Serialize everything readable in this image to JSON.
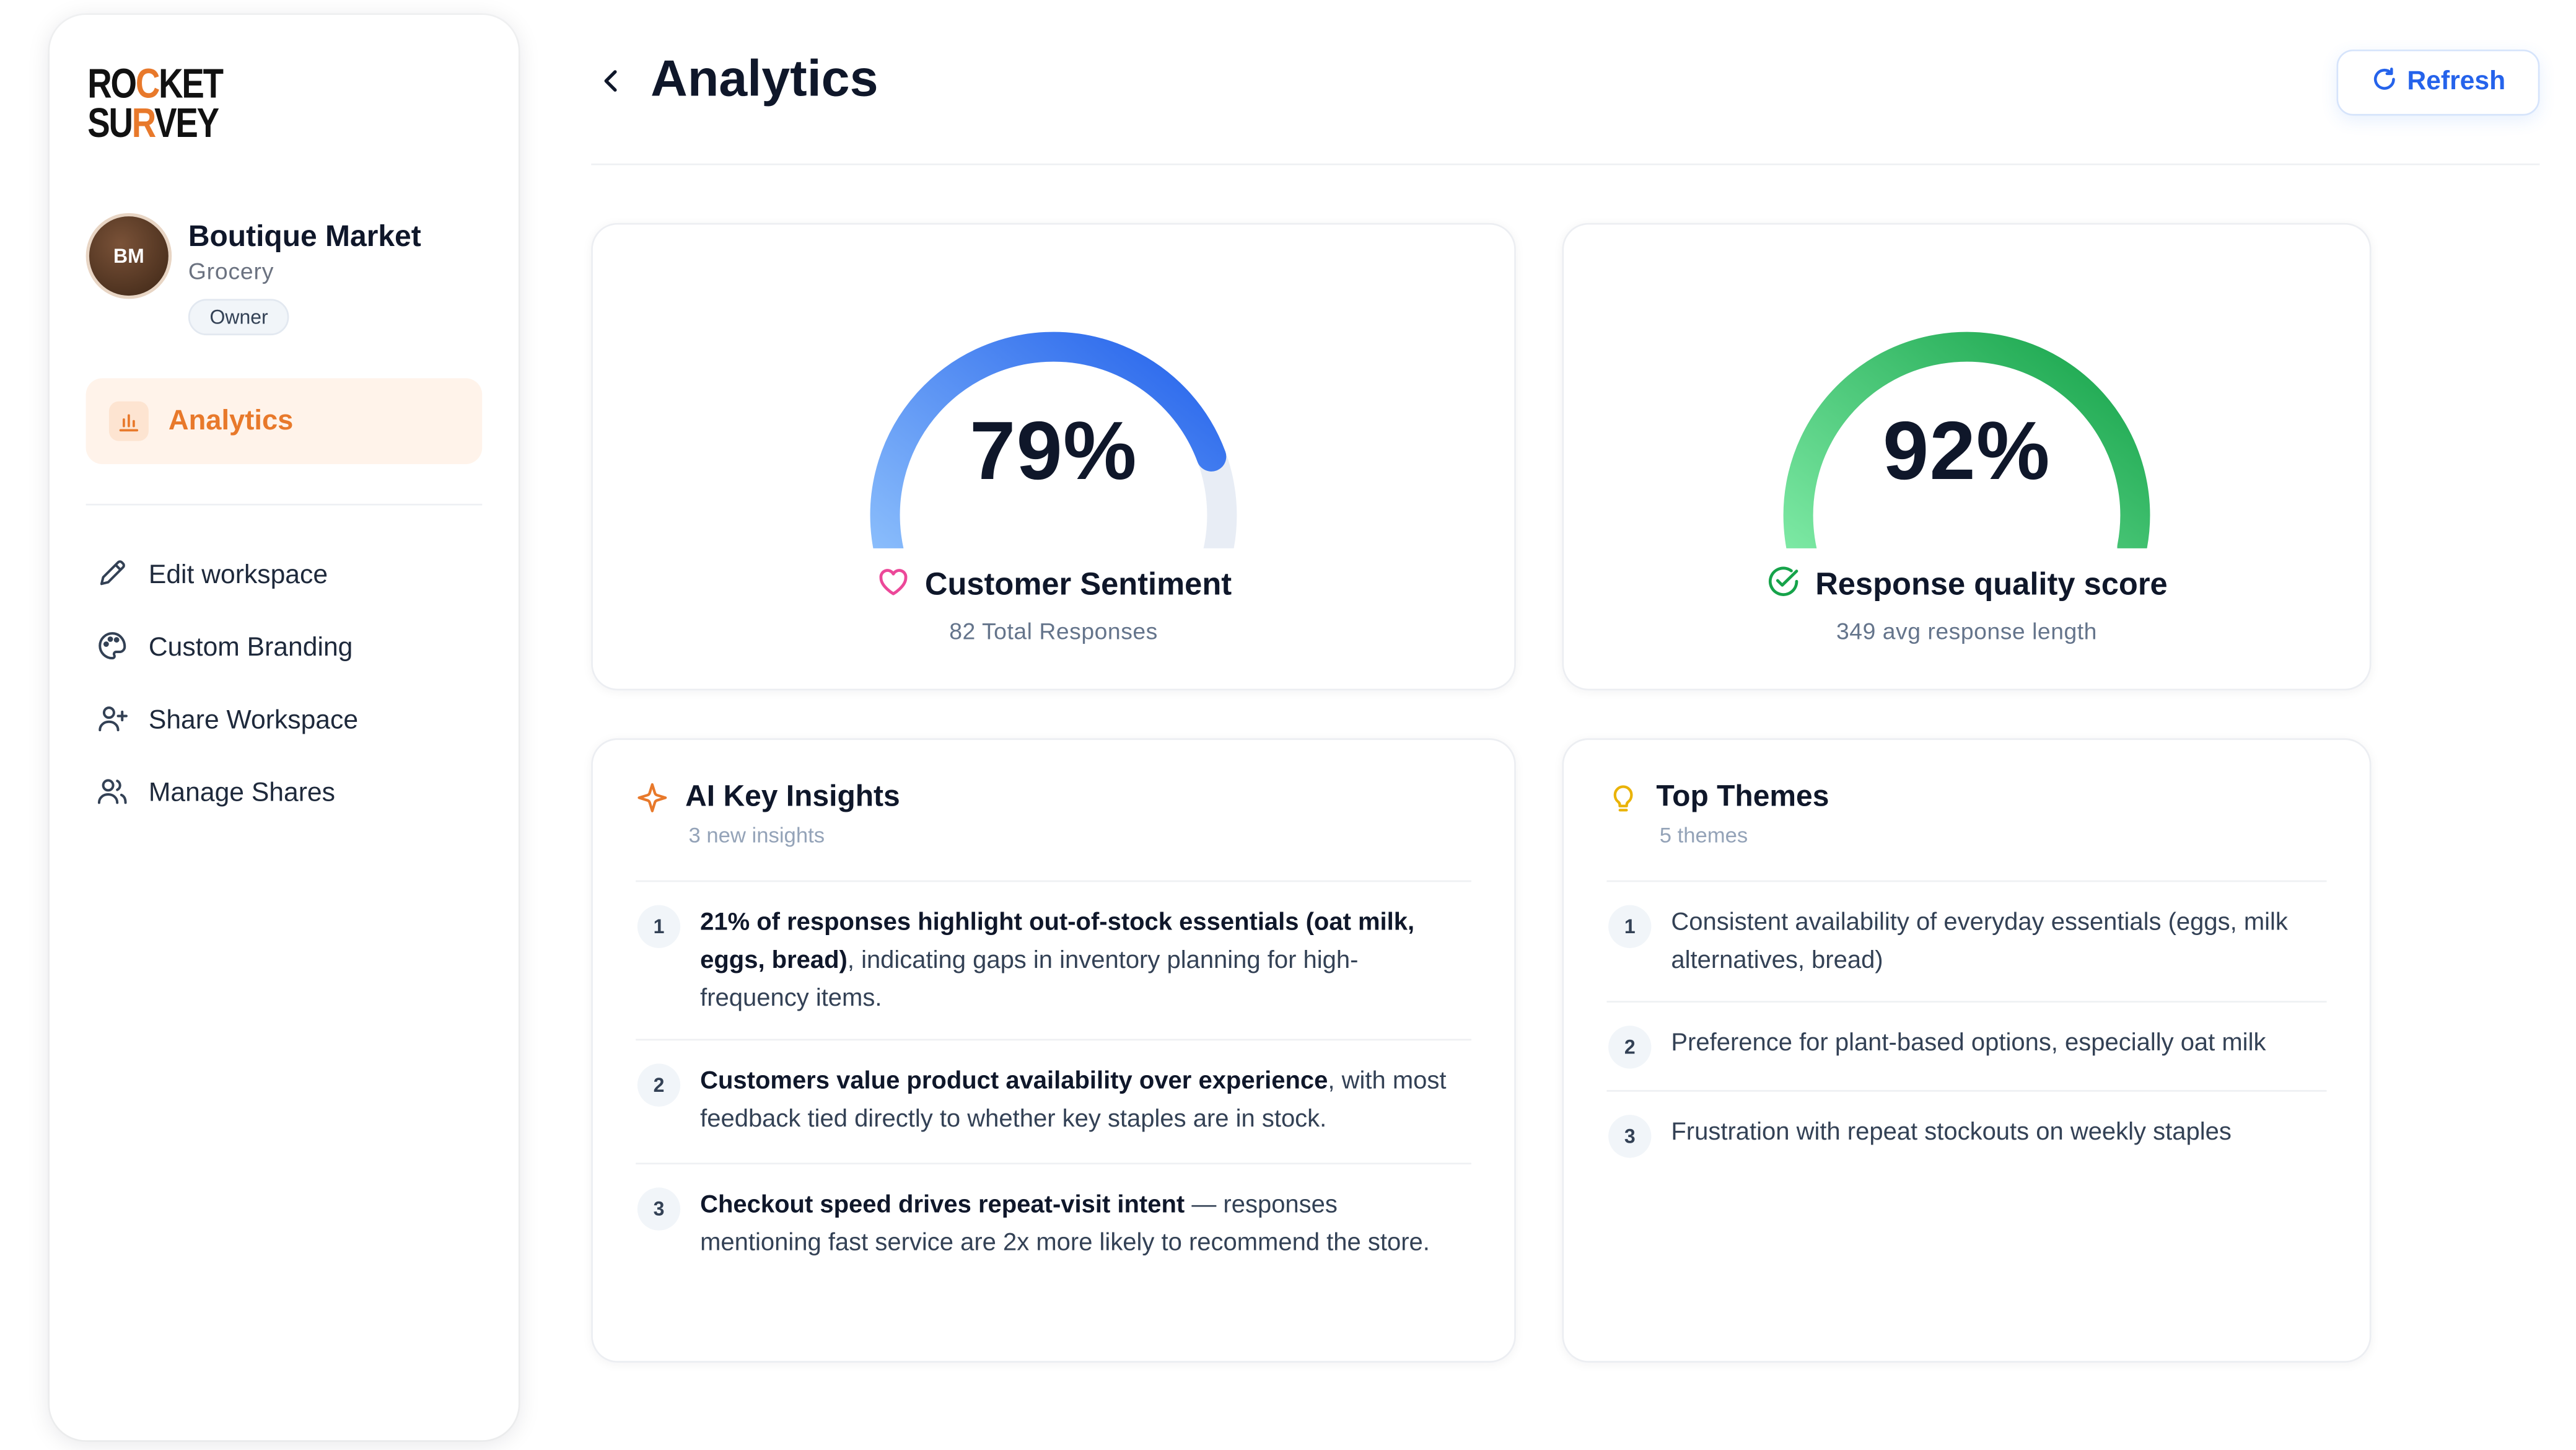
{
  "brand": {
    "line1_a": "RO",
    "line1_o": "C",
    "line1_b": "KET",
    "line2_a": "SU",
    "line2_o": "R",
    "line2_b": "VEY",
    "accent": "#e8792b"
  },
  "workspace": {
    "initials": "BM",
    "name": "Boutique Market",
    "type": "Grocery",
    "role": "Owner"
  },
  "nav": {
    "active": {
      "label": "Analytics",
      "icon": "bar-chart-icon"
    },
    "items": [
      {
        "label": "Edit workspace",
        "icon": "pencil-icon"
      },
      {
        "label": "Custom Branding",
        "icon": "palette-icon"
      },
      {
        "label": "Share Workspace",
        "icon": "user-plus-icon"
      },
      {
        "label": "Manage Shares",
        "icon": "users-icon"
      }
    ]
  },
  "header": {
    "title": "Analytics",
    "refresh_label": "Refresh"
  },
  "gauges": [
    {
      "value": 0.79,
      "value_label": "79%",
      "label": "Customer Sentiment",
      "sub": "82 Total Responses",
      "icon": "heart-icon",
      "colors": {
        "from": "#93c5fd",
        "to": "#2563eb",
        "track": "#e8edf5"
      }
    },
    {
      "value": 0.92,
      "value_label": "92%",
      "label": "Response quality score",
      "sub": "349 avg response length",
      "icon": "check-circle-icon",
      "colors": {
        "from": "#86efac",
        "to": "#16a34a",
        "track": "#e8edf5"
      }
    }
  ],
  "insights": {
    "title": "AI Key Insights",
    "subtitle": "3 new insights",
    "icon": "sparkle-icon",
    "items": [
      {
        "n": "1",
        "bold": "21% of responses highlight out-of-stock essentials (oat milk, eggs, bread)",
        "rest": ", indicating gaps in inventory planning for high-frequency items."
      },
      {
        "n": "2",
        "bold": "Customers value product availability over experience",
        "rest": ", with most feedback tied directly to whether key staples are in stock."
      },
      {
        "n": "3",
        "bold": "Checkout speed drives repeat-visit intent",
        "rest": " — responses mentioning fast service are 2x more likely to recommend the store."
      }
    ]
  },
  "themes": {
    "title": "Top Themes",
    "subtitle": "5 themes",
    "icon": "lightbulb-icon",
    "items": [
      {
        "n": "1",
        "text": "Consistent availability of everyday essentials (eggs, milk alternatives, bread)"
      },
      {
        "n": "2",
        "text": "Preference for plant-based options, especially oat milk"
      },
      {
        "n": "3",
        "text": "Frustration with repeat stockouts on weekly staples"
      }
    ]
  }
}
